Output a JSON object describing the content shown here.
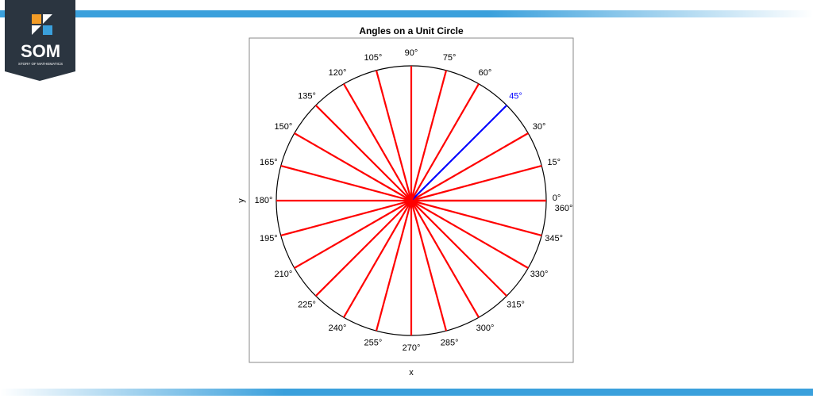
{
  "logo": {
    "text": "SOM",
    "subtitle": "STORY OF MATHEMATICS"
  },
  "chart_data": {
    "type": "radial",
    "title": "Angles on a Unit Circle",
    "x_label": "x",
    "y_label": "y",
    "circle_color": "#000000",
    "rays": [
      {
        "value": 0,
        "label": "0°",
        "color": "#ff0000"
      },
      {
        "value": 15,
        "label": "15°",
        "color": "#ff0000"
      },
      {
        "value": 30,
        "label": "30°",
        "color": "#ff0000"
      },
      {
        "value": 45,
        "label": "45°",
        "color": "#0000ff"
      },
      {
        "value": 60,
        "label": "60°",
        "color": "#ff0000"
      },
      {
        "value": 75,
        "label": "75°",
        "color": "#ff0000"
      },
      {
        "value": 90,
        "label": "90°",
        "color": "#ff0000"
      },
      {
        "value": 105,
        "label": "105°",
        "color": "#ff0000"
      },
      {
        "value": 120,
        "label": "120°",
        "color": "#ff0000"
      },
      {
        "value": 135,
        "label": "135°",
        "color": "#ff0000"
      },
      {
        "value": 150,
        "label": "150°",
        "color": "#ff0000"
      },
      {
        "value": 165,
        "label": "165°",
        "color": "#ff0000"
      },
      {
        "value": 180,
        "label": "180°",
        "color": "#ff0000"
      },
      {
        "value": 195,
        "label": "195°",
        "color": "#ff0000"
      },
      {
        "value": 210,
        "label": "210°",
        "color": "#ff0000"
      },
      {
        "value": 225,
        "label": "225°",
        "color": "#ff0000"
      },
      {
        "value": 240,
        "label": "240°",
        "color": "#ff0000"
      },
      {
        "value": 255,
        "label": "255°",
        "color": "#ff0000"
      },
      {
        "value": 270,
        "label": "270°",
        "color": "#ff0000"
      },
      {
        "value": 285,
        "label": "285°",
        "color": "#ff0000"
      },
      {
        "value": 300,
        "label": "300°",
        "color": "#ff0000"
      },
      {
        "value": 315,
        "label": "315°",
        "color": "#ff0000"
      },
      {
        "value": 330,
        "label": "330°",
        "color": "#ff0000"
      },
      {
        "value": 345,
        "label": "345°",
        "color": "#ff0000"
      },
      {
        "value": 360,
        "label": "360°",
        "color": "#ff0000"
      }
    ]
  }
}
